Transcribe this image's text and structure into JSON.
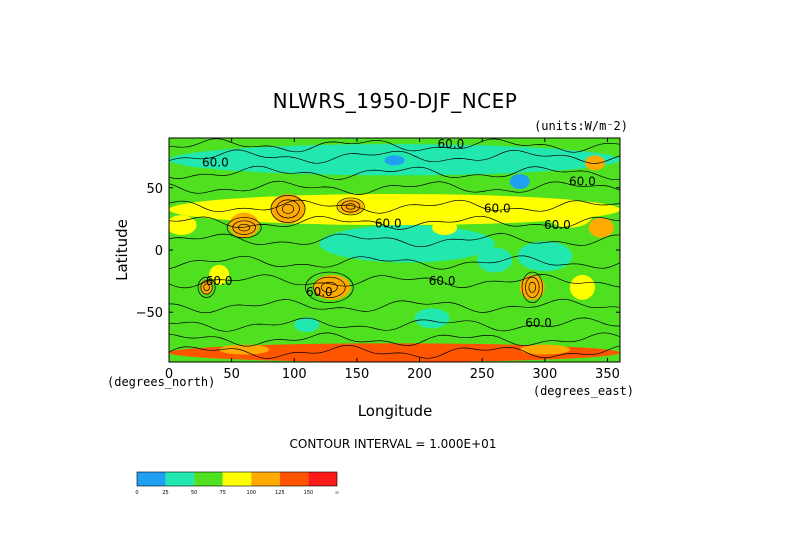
{
  "chart_data": {
    "type": "heatmap",
    "title": "NLWRS_1950-DJF_NCEP",
    "units_label": "(units:W/m^2)",
    "xlabel": "Longitude",
    "ylabel": "Latitude",
    "x_unit_label": "(degrees_east)",
    "y_unit_label": "(degrees_north)",
    "xlim": [
      0,
      360
    ],
    "ylim": [
      -90,
      90
    ],
    "x_ticks": [
      0,
      50,
      100,
      150,
      200,
      250,
      300,
      350
    ],
    "y_ticks": [
      -50,
      0,
      50
    ],
    "contour_interval_text": "CONTOUR INTERVAL = 1.000E+01",
    "contour_labels": [
      "60.0",
      "60.0",
      "60.0",
      "60.0",
      "60.0",
      "60.0",
      "60.0",
      "60.0",
      "60.0",
      "60.0"
    ],
    "colorbar": {
      "levels": [
        "0",
        "25",
        "50",
        "75",
        "100",
        "125",
        "150",
        "∞"
      ],
      "colors": [
        "#1fa0f0",
        "#22e8b0",
        "#4fe020",
        "#ffff00",
        "#ffaa00",
        "#ff5500",
        "#ff1a1a"
      ]
    },
    "regions": [
      {
        "lon": [
          0,
          360
        ],
        "lat": [
          -90,
          90
        ],
        "level": "50-75",
        "color": "#4fe020"
      },
      {
        "lon": [
          120,
          260
        ],
        "lat": [
          -10,
          20
        ],
        "level": "25-50",
        "color": "#22e8b0"
      },
      {
        "lon": [
          0,
          360
        ],
        "lat": [
          60,
          85
        ],
        "level": "25-50",
        "color": "#22e8b0"
      },
      {
        "lon": [
          0,
          360
        ],
        "lat": [
          20,
          45
        ],
        "level": "75-100",
        "color": "#ffff00"
      },
      {
        "lon": [
          115,
          145
        ],
        "lat": [
          -40,
          -20
        ],
        "level": "100-150",
        "color": "#ffaa00"
      },
      {
        "lon": [
          280,
          300
        ],
        "lat": [
          -40,
          -20
        ],
        "level": "100-150",
        "color": "#ffaa00"
      },
      {
        "lon": [
          0,
          360
        ],
        "lat": [
          -90,
          -75
        ],
        "level": "100-150",
        "color": "#ff5500"
      }
    ]
  }
}
